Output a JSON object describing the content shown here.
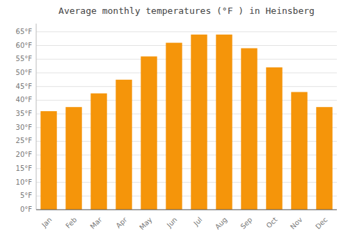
{
  "chart_data": {
    "type": "bar",
    "title": "Average monthly temperatures (°F ) in Heinsberg",
    "categories": [
      "Jan",
      "Feb",
      "Mar",
      "Apr",
      "May",
      "Jun",
      "Jul",
      "Aug",
      "Sep",
      "Oct",
      "Nov",
      "Dec"
    ],
    "values": [
      36,
      37.5,
      42.5,
      47.5,
      56,
      61,
      64,
      64,
      59,
      52,
      43,
      37.5
    ],
    "color": "#F5950A",
    "ylim": [
      0,
      68
    ],
    "yticks": [
      {
        "value": 0,
        "label": "0°F"
      },
      {
        "value": 5,
        "label": "5°F"
      },
      {
        "value": 10,
        "label": "10°F"
      },
      {
        "value": 15,
        "label": "15°F"
      },
      {
        "value": 20,
        "label": "20°F"
      },
      {
        "value": 25,
        "label": "25°F"
      },
      {
        "value": 30,
        "label": "30°F"
      },
      {
        "value": 35,
        "label": "35°F"
      },
      {
        "value": 40,
        "label": "40°F"
      },
      {
        "value": 45,
        "label": "45°F"
      },
      {
        "value": 50,
        "label": "50°F"
      },
      {
        "value": 55,
        "label": "55°F"
      },
      {
        "value": 60,
        "label": "60°F"
      },
      {
        "value": 65,
        "label": "65°F"
      }
    ],
    "grid": true
  }
}
